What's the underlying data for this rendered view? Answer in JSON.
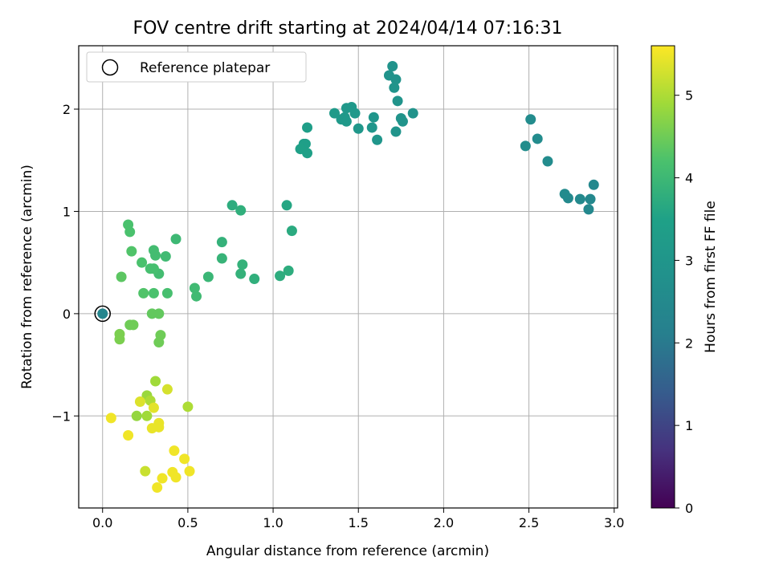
{
  "chart_data": {
    "type": "scatter",
    "title": "FOV centre drift starting at 2024/04/14 07:16:31",
    "xlabel": "Angular distance from reference (arcmin)",
    "ylabel": "Rotation from reference (arcmin)",
    "xlim": [
      -0.14,
      3.02
    ],
    "ylim": [
      -1.9,
      2.62
    ],
    "xticks": [
      0.0,
      0.5,
      1.0,
      1.5,
      2.0,
      2.5,
      3.0
    ],
    "xtick_labels": [
      "0.0",
      "0.5",
      "1.0",
      "1.5",
      "2.0",
      "2.5",
      "3.0"
    ],
    "yticks": [
      -1,
      0,
      1,
      2
    ],
    "ytick_labels": [
      "−1",
      "0",
      "1",
      "2"
    ],
    "grid": true,
    "legend": {
      "position": "upper-left",
      "label": "Reference platepar"
    },
    "reference_point": {
      "x": 0.0,
      "y": 0.0,
      "c": 2.35
    },
    "colorbar": {
      "label": "Hours from first FF file",
      "range": [
        0,
        5.6
      ],
      "ticks": [
        0,
        1,
        2,
        3,
        4,
        5
      ],
      "tick_labels": [
        "0",
        "1",
        "2",
        "3",
        "4",
        "5"
      ],
      "colormap": "viridis"
    },
    "points": [
      {
        "x": 2.86,
        "y": 1.12,
        "c": 2.45
      },
      {
        "x": 2.85,
        "y": 1.02,
        "c": 2.45
      },
      {
        "x": 2.88,
        "y": 1.26,
        "c": 2.45
      },
      {
        "x": 2.8,
        "y": 1.12,
        "c": 2.5
      },
      {
        "x": 2.73,
        "y": 1.13,
        "c": 2.5
      },
      {
        "x": 2.71,
        "y": 1.17,
        "c": 2.55
      },
      {
        "x": 2.61,
        "y": 1.49,
        "c": 2.6
      },
      {
        "x": 2.55,
        "y": 1.71,
        "c": 2.6
      },
      {
        "x": 2.51,
        "y": 1.9,
        "c": 2.6
      },
      {
        "x": 2.48,
        "y": 1.64,
        "c": 2.65
      },
      {
        "x": 1.7,
        "y": 2.42,
        "c": 2.9
      },
      {
        "x": 1.68,
        "y": 2.33,
        "c": 2.9
      },
      {
        "x": 1.72,
        "y": 2.29,
        "c": 2.9
      },
      {
        "x": 1.71,
        "y": 2.21,
        "c": 2.95
      },
      {
        "x": 1.73,
        "y": 2.08,
        "c": 2.95
      },
      {
        "x": 1.82,
        "y": 1.96,
        "c": 2.9
      },
      {
        "x": 1.75,
        "y": 1.91,
        "c": 2.95
      },
      {
        "x": 1.76,
        "y": 1.88,
        "c": 2.95
      },
      {
        "x": 1.72,
        "y": 1.78,
        "c": 2.95
      },
      {
        "x": 1.59,
        "y": 1.92,
        "c": 3.0
      },
      {
        "x": 1.58,
        "y": 1.82,
        "c": 3.0
      },
      {
        "x": 1.61,
        "y": 1.7,
        "c": 3.0
      },
      {
        "x": 1.5,
        "y": 1.81,
        "c": 3.05
      },
      {
        "x": 1.48,
        "y": 1.96,
        "c": 3.1
      },
      {
        "x": 1.46,
        "y": 2.02,
        "c": 3.1
      },
      {
        "x": 1.43,
        "y": 2.01,
        "c": 3.1
      },
      {
        "x": 1.42,
        "y": 1.92,
        "c": 3.15
      },
      {
        "x": 1.4,
        "y": 1.9,
        "c": 3.15
      },
      {
        "x": 1.43,
        "y": 1.88,
        "c": 3.15
      },
      {
        "x": 1.36,
        "y": 1.96,
        "c": 3.2
      },
      {
        "x": 1.2,
        "y": 1.82,
        "c": 3.35
      },
      {
        "x": 1.19,
        "y": 1.66,
        "c": 3.4
      },
      {
        "x": 1.18,
        "y": 1.66,
        "c": 3.4
      },
      {
        "x": 1.16,
        "y": 1.61,
        "c": 3.45
      },
      {
        "x": 1.2,
        "y": 1.57,
        "c": 3.45
      },
      {
        "x": 1.08,
        "y": 1.06,
        "c": 3.6
      },
      {
        "x": 1.11,
        "y": 0.81,
        "c": 3.7
      },
      {
        "x": 1.09,
        "y": 0.42,
        "c": 3.75
      },
      {
        "x": 1.04,
        "y": 0.37,
        "c": 3.75
      },
      {
        "x": 0.89,
        "y": 0.34,
        "c": 3.8
      },
      {
        "x": 0.82,
        "y": 0.48,
        "c": 3.85
      },
      {
        "x": 0.81,
        "y": 0.39,
        "c": 3.85
      },
      {
        "x": 0.81,
        "y": 1.01,
        "c": 3.8
      },
      {
        "x": 0.76,
        "y": 1.06,
        "c": 3.75
      },
      {
        "x": 0.7,
        "y": 0.7,
        "c": 3.85
      },
      {
        "x": 0.7,
        "y": 0.54,
        "c": 3.9
      },
      {
        "x": 0.62,
        "y": 0.36,
        "c": 3.95
      },
      {
        "x": 0.55,
        "y": 0.17,
        "c": 4.05
      },
      {
        "x": 0.54,
        "y": 0.25,
        "c": 4.05
      },
      {
        "x": 0.43,
        "y": 0.73,
        "c": 4.0
      },
      {
        "x": 0.37,
        "y": 0.56,
        "c": 4.05
      },
      {
        "x": 0.38,
        "y": 0.2,
        "c": 4.15
      },
      {
        "x": 0.33,
        "y": 0.39,
        "c": 4.1
      },
      {
        "x": 0.31,
        "y": 0.57,
        "c": 4.1
      },
      {
        "x": 0.3,
        "y": 0.62,
        "c": 4.1
      },
      {
        "x": 0.3,
        "y": 0.44,
        "c": 4.15
      },
      {
        "x": 0.28,
        "y": 0.44,
        "c": 4.15
      },
      {
        "x": 0.3,
        "y": 0.2,
        "c": 4.2
      },
      {
        "x": 0.24,
        "y": 0.2,
        "c": 4.25
      },
      {
        "x": 0.23,
        "y": 0.5,
        "c": 4.2
      },
      {
        "x": 0.17,
        "y": 0.61,
        "c": 4.25
      },
      {
        "x": 0.16,
        "y": 0.8,
        "c": 4.2
      },
      {
        "x": 0.15,
        "y": 0.87,
        "c": 4.2
      },
      {
        "x": 0.11,
        "y": 0.36,
        "c": 4.35
      },
      {
        "x": 0.29,
        "y": 0.0,
        "c": 4.4
      },
      {
        "x": 0.33,
        "y": 0.0,
        "c": 4.4
      },
      {
        "x": 0.34,
        "y": -0.21,
        "c": 4.5
      },
      {
        "x": 0.33,
        "y": -0.28,
        "c": 4.5
      },
      {
        "x": 0.18,
        "y": -0.11,
        "c": 4.5
      },
      {
        "x": 0.16,
        "y": -0.11,
        "c": 4.5
      },
      {
        "x": 0.1,
        "y": -0.2,
        "c": 4.6
      },
      {
        "x": 0.1,
        "y": -0.25,
        "c": 4.6
      },
      {
        "x": 0.31,
        "y": -0.66,
        "c": 4.9
      },
      {
        "x": 0.26,
        "y": -0.8,
        "c": 4.85
      },
      {
        "x": 0.2,
        "y": -1.0,
        "c": 4.8
      },
      {
        "x": 0.26,
        "y": -1.0,
        "c": 4.9
      },
      {
        "x": 0.28,
        "y": -0.85,
        "c": 5.0
      },
      {
        "x": 0.38,
        "y": -0.74,
        "c": 5.3
      },
      {
        "x": 0.22,
        "y": -0.86,
        "c": 5.35
      },
      {
        "x": 0.3,
        "y": -0.92,
        "c": 5.4
      },
      {
        "x": 0.5,
        "y": -0.91,
        "c": 5.0
      },
      {
        "x": 0.33,
        "y": -1.07,
        "c": 5.45
      },
      {
        "x": 0.33,
        "y": -1.11,
        "c": 5.45
      },
      {
        "x": 0.29,
        "y": -1.12,
        "c": 5.45
      },
      {
        "x": 0.05,
        "y": -1.02,
        "c": 5.5
      },
      {
        "x": 0.15,
        "y": -1.19,
        "c": 5.5
      },
      {
        "x": 0.42,
        "y": -1.34,
        "c": 5.5
      },
      {
        "x": 0.48,
        "y": -1.42,
        "c": 5.5
      },
      {
        "x": 0.25,
        "y": -1.54,
        "c": 5.2
      },
      {
        "x": 0.41,
        "y": -1.55,
        "c": 5.5
      },
      {
        "x": 0.51,
        "y": -1.54,
        "c": 5.5
      },
      {
        "x": 0.43,
        "y": -1.6,
        "c": 5.5
      },
      {
        "x": 0.35,
        "y": -1.61,
        "c": 5.5
      },
      {
        "x": 0.32,
        "y": -1.7,
        "c": 5.5
      },
      {
        "x": 0.0,
        "y": 0.0,
        "c": 2.35
      }
    ]
  }
}
